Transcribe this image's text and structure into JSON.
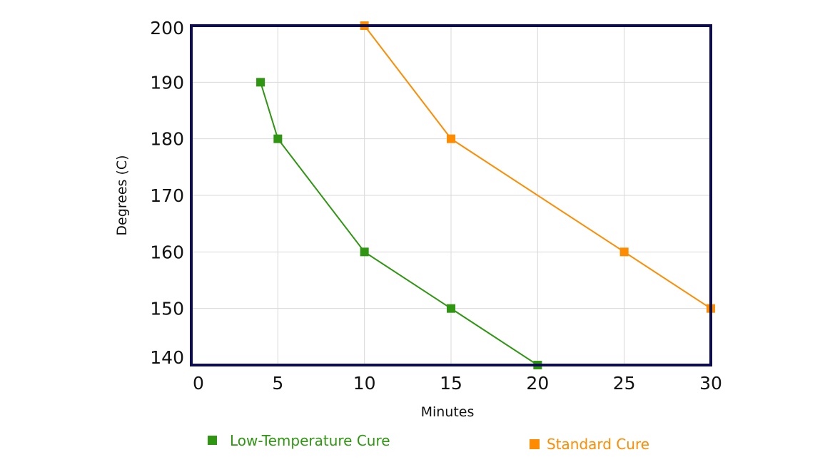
{
  "chart_data": {
    "type": "line",
    "title": "",
    "xlabel": "Minutes",
    "ylabel": "Degrees (C)",
    "xlim": [
      0,
      30
    ],
    "ylim": [
      140,
      200
    ],
    "xticks": [
      0,
      5,
      10,
      15,
      20,
      25,
      30
    ],
    "yticks": [
      140,
      150,
      160,
      170,
      180,
      190,
      200
    ],
    "grid": true,
    "legend_position": "bottom",
    "series": [
      {
        "name": "Low-Temperature Cure",
        "color": "#2e9611",
        "marker": "square",
        "x": [
          4,
          5,
          10,
          15,
          20
        ],
        "y": [
          190,
          180,
          160,
          150,
          140
        ]
      },
      {
        "name": "Standard Cure",
        "color": "#ff8c00",
        "marker": "square",
        "x": [
          10,
          15,
          25,
          30
        ],
        "y": [
          200,
          180,
          160,
          150
        ]
      }
    ],
    "frame_color": "#0d0d4d",
    "grid_color": "#d9d9d9"
  }
}
